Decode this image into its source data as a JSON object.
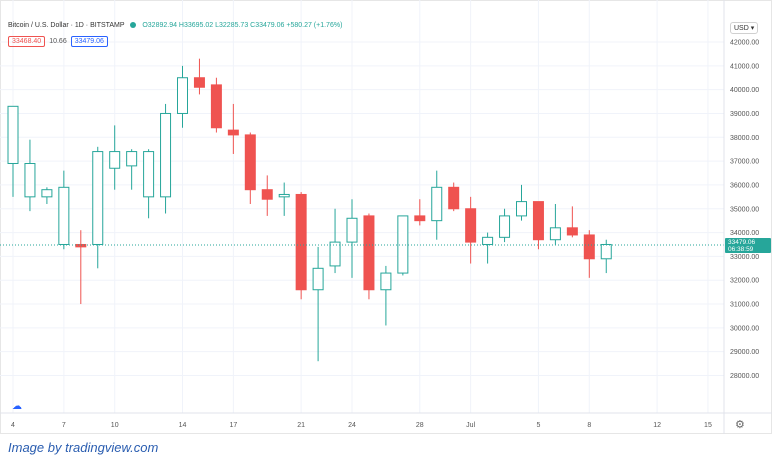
{
  "header": {
    "symbol": "Bitcoin / U.S. Dollar · 1D · BITSTAMP",
    "ohlc": "O32892.94 H33695.02 L32285.73 C33479.06 +580.27 (+1.76%)",
    "bid": "33468.40",
    "spread": "10.66",
    "ask": "33479.06",
    "currency": "USD",
    "last_price": "33479.06",
    "countdown": "06:38:59"
  },
  "caption": "Image by tradingview.com",
  "icons": [
    "gear-icon",
    "tradingview-logo-icon"
  ],
  "colors": {
    "up": "#26a69a",
    "down": "#ef5350",
    "current": "#26a69a"
  },
  "chart_data": {
    "type": "candlestick",
    "ylim": [
      27500,
      42500
    ],
    "y_ticks": [
      28000,
      29000,
      30000,
      31000,
      32000,
      33000,
      34000,
      35000,
      36000,
      37000,
      38000,
      39000,
      40000,
      41000,
      42000
    ],
    "y_tick_labels": [
      "28000.00",
      "29000.00",
      "30000.00",
      "31000.00",
      "32000.00",
      "33000.00",
      "34000.00",
      "35000.00",
      "36000.00",
      "37000.00",
      "38000.00",
      "39000.00",
      "40000.00",
      "41000.00",
      "42000.00"
    ],
    "x_ticks": [
      {
        "i": 0,
        "label": "4"
      },
      {
        "i": 3,
        "label": "7"
      },
      {
        "i": 6,
        "label": "10"
      },
      {
        "i": 10,
        "label": "14"
      },
      {
        "i": 13,
        "label": "17"
      },
      {
        "i": 17,
        "label": "21"
      },
      {
        "i": 20,
        "label": "24"
      },
      {
        "i": 24,
        "label": "28"
      },
      {
        "i": 27,
        "label": "Jul"
      },
      {
        "i": 31,
        "label": "5"
      },
      {
        "i": 34,
        "label": "8"
      },
      {
        "i": 38,
        "label": "12"
      },
      {
        "i": 41,
        "label": "15"
      }
    ],
    "candles": [
      {
        "o": 36900,
        "h": 39300,
        "l": 35500,
        "c": 39300
      },
      {
        "o": 35500,
        "h": 37900,
        "l": 34900,
        "c": 36900
      },
      {
        "o": 35500,
        "h": 35900,
        "l": 35200,
        "c": 35800
      },
      {
        "o": 33500,
        "h": 36600,
        "l": 33300,
        "c": 35900
      },
      {
        "o": 33500,
        "h": 34100,
        "l": 31000,
        "c": 33400
      },
      {
        "o": 33500,
        "h": 37600,
        "l": 32500,
        "c": 37400
      },
      {
        "o": 36700,
        "h": 38500,
        "l": 35800,
        "c": 37400
      },
      {
        "o": 36800,
        "h": 37500,
        "l": 35800,
        "c": 37400
      },
      {
        "o": 35500,
        "h": 37500,
        "l": 34600,
        "c": 37400
      },
      {
        "o": 35500,
        "h": 39400,
        "l": 34800,
        "c": 39000
      },
      {
        "o": 39000,
        "h": 41000,
        "l": 38400,
        "c": 40500
      },
      {
        "o": 40500,
        "h": 41300,
        "l": 39800,
        "c": 40100
      },
      {
        "o": 40200,
        "h": 40500,
        "l": 38200,
        "c": 38400
      },
      {
        "o": 38300,
        "h": 39400,
        "l": 37300,
        "c": 38100
      },
      {
        "o": 38100,
        "h": 38200,
        "l": 35200,
        "c": 35800
      },
      {
        "o": 35800,
        "h": 36400,
        "l": 34700,
        "c": 35400
      },
      {
        "o": 35500,
        "h": 36100,
        "l": 34700,
        "c": 35600
      },
      {
        "o": 35600,
        "h": 35700,
        "l": 31200,
        "c": 31600
      },
      {
        "o": 31600,
        "h": 33400,
        "l": 28600,
        "c": 32500
      },
      {
        "o": 32600,
        "h": 35000,
        "l": 32300,
        "c": 33600
      },
      {
        "o": 33600,
        "h": 35400,
        "l": 32100,
        "c": 34600
      },
      {
        "o": 34700,
        "h": 34800,
        "l": 31200,
        "c": 31600
      },
      {
        "o": 31600,
        "h": 32600,
        "l": 30100,
        "c": 32300
      },
      {
        "o": 32300,
        "h": 34700,
        "l": 32200,
        "c": 34700
      },
      {
        "o": 34700,
        "h": 35400,
        "l": 34300,
        "c": 34500
      },
      {
        "o": 34500,
        "h": 36600,
        "l": 33700,
        "c": 35900
      },
      {
        "o": 35900,
        "h": 36100,
        "l": 34900,
        "c": 35000
      },
      {
        "o": 35000,
        "h": 35500,
        "l": 32700,
        "c": 33600
      },
      {
        "o": 33500,
        "h": 34000,
        "l": 32700,
        "c": 33800
      },
      {
        "o": 33800,
        "h": 35000,
        "l": 33600,
        "c": 34700
      },
      {
        "o": 34700,
        "h": 36000,
        "l": 34500,
        "c": 35300
      },
      {
        "o": 35300,
        "h": 35300,
        "l": 33300,
        "c": 33700
      },
      {
        "o": 33700,
        "h": 35200,
        "l": 33500,
        "c": 34200
      },
      {
        "o": 34200,
        "h": 35100,
        "l": 33800,
        "c": 33900
      },
      {
        "o": 33900,
        "h": 34100,
        "l": 32100,
        "c": 32900
      },
      {
        "o": 32900,
        "h": 33700,
        "l": 32300,
        "c": 33500
      }
    ]
  }
}
